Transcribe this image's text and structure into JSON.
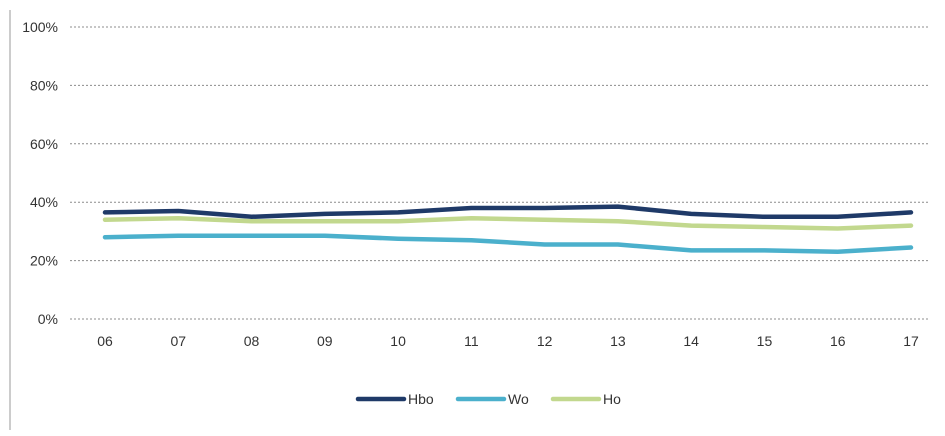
{
  "chart_data": {
    "type": "line",
    "categories": [
      "06",
      "07",
      "08",
      "09",
      "10",
      "11",
      "12",
      "13",
      "14",
      "15",
      "16",
      "17"
    ],
    "ylim": [
      0,
      100
    ],
    "yticks": [
      0,
      20,
      40,
      60,
      80,
      100
    ],
    "ytick_labels": [
      "0%",
      "20%",
      "40%",
      "60%",
      "80%",
      "100%"
    ],
    "grid": true,
    "legend_position": "bottom",
    "series": [
      {
        "name": "Hbo",
        "color": "#1f3a68",
        "values": [
          36.5,
          37,
          35,
          36,
          36.5,
          38,
          38,
          38.5,
          36,
          35,
          35,
          36.5
        ]
      },
      {
        "name": "Wo",
        "color": "#4bb0cc",
        "values": [
          28,
          28.5,
          28.5,
          28.5,
          27.5,
          27,
          25.5,
          25.5,
          23.5,
          23.5,
          23,
          24.5
        ]
      },
      {
        "name": "Ho",
        "color": "#c2d88e",
        "values": [
          34,
          34.5,
          33.5,
          33.5,
          33.5,
          34.5,
          34,
          33.5,
          32,
          31.5,
          31,
          32
        ]
      }
    ]
  }
}
